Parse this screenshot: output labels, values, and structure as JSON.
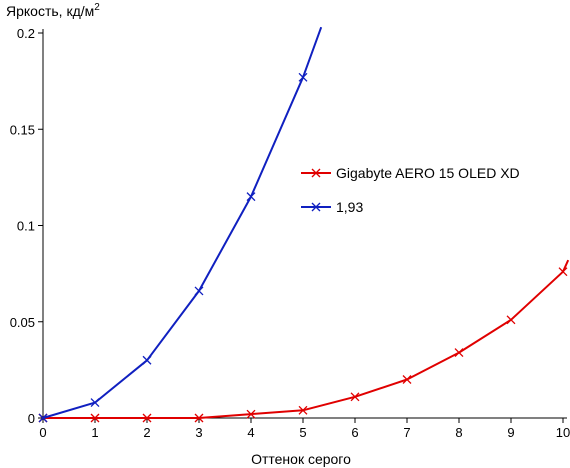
{
  "chart_data": {
    "type": "line",
    "title": "",
    "xlabel": "Оттенок серого",
    "ylabel": "Яркость, кд/м",
    "ylabel_superscript": "2",
    "xlim": [
      0,
      10
    ],
    "ylim": [
      0,
      0.2
    ],
    "x_ticks": [
      "0",
      "1",
      "2",
      "3",
      "4",
      "5",
      "6",
      "7",
      "8",
      "9",
      "10"
    ],
    "y_ticks": [
      {
        "value": 0,
        "label": "0"
      },
      {
        "value": 0.05,
        "label": "0.05"
      },
      {
        "value": 0.1,
        "label": "0.1"
      },
      {
        "value": 0.15,
        "label": "0.15"
      },
      {
        "value": 0.2,
        "label": "0.2"
      }
    ],
    "grid": false,
    "legend_position": "right-middle",
    "series": [
      {
        "name": "Gigabyte AERO 15 OLED XD",
        "color": "#e00000",
        "points": [
          [
            0,
            0
          ],
          [
            1,
            0
          ],
          [
            2,
            0
          ],
          [
            3,
            0
          ],
          [
            4,
            0.002
          ],
          [
            5,
            0.004
          ],
          [
            6,
            0.011
          ],
          [
            7,
            0.02
          ],
          [
            8,
            0.034
          ],
          [
            9,
            0.051
          ],
          [
            10,
            0.076
          ]
        ],
        "line_extends_to": [
          10.1,
          0.082
        ]
      },
      {
        "name": "1,93",
        "color": "#1020c0",
        "points": [
          [
            0,
            0
          ],
          [
            1,
            0.008
          ],
          [
            2,
            0.03
          ],
          [
            3,
            0.066
          ],
          [
            4,
            0.115
          ],
          [
            5,
            0.177
          ]
        ],
        "line_extends_to": [
          5.35,
          0.203
        ]
      }
    ]
  }
}
